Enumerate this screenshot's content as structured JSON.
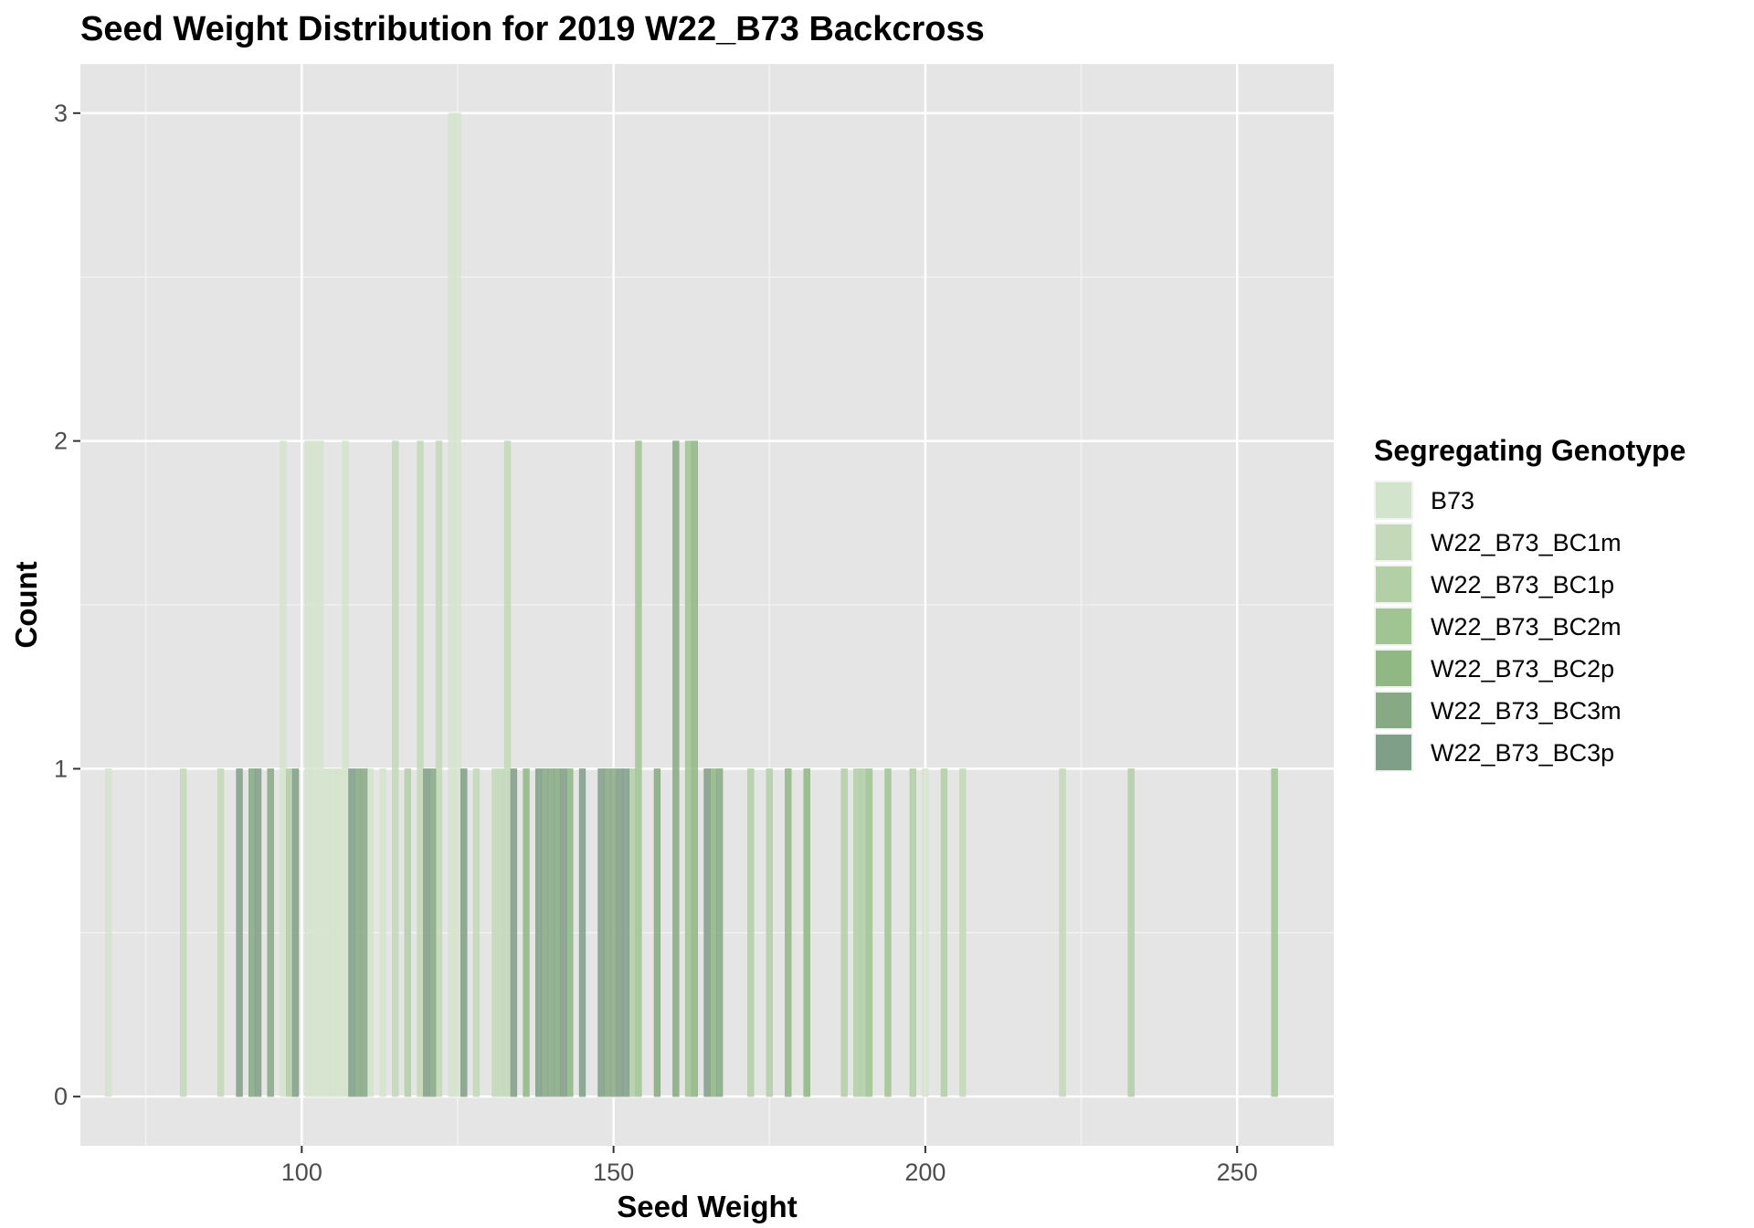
{
  "chart_data": {
    "type": "bar",
    "title": "Seed Weight Distribution for 2019 W22_B73 Backcross",
    "xlabel": "Seed Weight",
    "ylabel": "Count",
    "xlim": [
      64.5,
      265.5
    ],
    "ylim": [
      -0.15,
      3.15
    ],
    "x_ticks": [
      100,
      150,
      200,
      250
    ],
    "x_tick_labels": [
      "100",
      "150",
      "200",
      "250"
    ],
    "y_ticks": [
      0,
      1,
      2,
      3
    ],
    "y_tick_labels": [
      "0",
      "1",
      "2",
      "3"
    ],
    "grid": true,
    "legend": {
      "title": "Segregating Genotype",
      "position": "right",
      "entries": [
        {
          "label": "B73",
          "color": "#d3e4cc"
        },
        {
          "label": "W22_B73_BC1m",
          "color": "#c3d9b9"
        },
        {
          "label": "W22_B73_BC1p",
          "color": "#b2cfa6"
        },
        {
          "label": "W22_B73_BC2m",
          "color": "#a1c493"
        },
        {
          "label": "W22_B73_BC2p",
          "color": "#8fb882"
        },
        {
          "label": "W22_B73_BC3m",
          "color": "#87a984"
        },
        {
          "label": "W22_B73_BC3p",
          "color": "#809f88"
        }
      ]
    },
    "series": [
      {
        "name": "B73",
        "color": "#d3e4cc",
        "points": [
          {
            "x": 69,
            "count": 1
          },
          {
            "x": 97,
            "count": 2
          },
          {
            "x": 101,
            "count": 2
          },
          {
            "x": 102,
            "count": 2
          },
          {
            "x": 103,
            "count": 2
          },
          {
            "x": 104,
            "count": 1
          },
          {
            "x": 105,
            "count": 1
          },
          {
            "x": 106,
            "count": 1
          },
          {
            "x": 107,
            "count": 2
          },
          {
            "x": 111,
            "count": 1
          },
          {
            "x": 113,
            "count": 1
          },
          {
            "x": 124,
            "count": 3
          },
          {
            "x": 125,
            "count": 3
          },
          {
            "x": 200,
            "count": 1
          }
        ]
      },
      {
        "name": "W22_B73_BC1m",
        "color": "#c3d9b9",
        "points": [
          {
            "x": 81,
            "count": 1
          },
          {
            "x": 87,
            "count": 1
          },
          {
            "x": 115,
            "count": 2
          },
          {
            "x": 119,
            "count": 2
          },
          {
            "x": 122,
            "count": 2
          },
          {
            "x": 128,
            "count": 1
          },
          {
            "x": 131,
            "count": 1
          },
          {
            "x": 132,
            "count": 1
          },
          {
            "x": 133,
            "count": 2
          },
          {
            "x": 206,
            "count": 1
          },
          {
            "x": 222,
            "count": 1
          }
        ]
      },
      {
        "name": "W22_B73_BC1p",
        "color": "#b2cfa6",
        "points": [
          {
            "x": 98,
            "count": 1
          },
          {
            "x": 117,
            "count": 1
          },
          {
            "x": 153,
            "count": 1
          },
          {
            "x": 172,
            "count": 1
          },
          {
            "x": 175,
            "count": 1
          },
          {
            "x": 187,
            "count": 1
          },
          {
            "x": 189,
            "count": 1
          },
          {
            "x": 190,
            "count": 1
          },
          {
            "x": 198,
            "count": 1
          },
          {
            "x": 203,
            "count": 1
          },
          {
            "x": 233,
            "count": 1
          }
        ]
      },
      {
        "name": "W22_B73_BC2m",
        "color": "#a1c493",
        "points": [
          {
            "x": 154,
            "count": 2
          },
          {
            "x": 162,
            "count": 2
          },
          {
            "x": 191,
            "count": 1
          },
          {
            "x": 194,
            "count": 1
          },
          {
            "x": 256,
            "count": 1
          }
        ]
      },
      {
        "name": "W22_B73_BC2p",
        "color": "#8fb882",
        "points": [
          {
            "x": 136,
            "count": 1
          },
          {
            "x": 143,
            "count": 1
          },
          {
            "x": 163,
            "count": 2
          },
          {
            "x": 166,
            "count": 1
          },
          {
            "x": 178,
            "count": 1
          },
          {
            "x": 181,
            "count": 1
          }
        ]
      },
      {
        "name": "W22_B73_BC3m",
        "color": "#87a984",
        "points": [
          {
            "x": 92,
            "count": 1
          },
          {
            "x": 95,
            "count": 1
          },
          {
            "x": 109,
            "count": 1
          },
          {
            "x": 110,
            "count": 1
          },
          {
            "x": 121,
            "count": 1
          },
          {
            "x": 139,
            "count": 1
          },
          {
            "x": 140,
            "count": 1
          },
          {
            "x": 141,
            "count": 1
          },
          {
            "x": 149,
            "count": 1
          },
          {
            "x": 150,
            "count": 1
          },
          {
            "x": 157,
            "count": 1
          },
          {
            "x": 160,
            "count": 2
          },
          {
            "x": 167,
            "count": 1
          }
        ]
      },
      {
        "name": "W22_B73_BC3p",
        "color": "#809f88",
        "points": [
          {
            "x": 90,
            "count": 1
          },
          {
            "x": 93,
            "count": 1
          },
          {
            "x": 99,
            "count": 1
          },
          {
            "x": 108,
            "count": 1
          },
          {
            "x": 120,
            "count": 1
          },
          {
            "x": 126,
            "count": 1
          },
          {
            "x": 134,
            "count": 1
          },
          {
            "x": 138,
            "count": 1
          },
          {
            "x": 142,
            "count": 1
          },
          {
            "x": 145,
            "count": 1
          },
          {
            "x": 148,
            "count": 1
          },
          {
            "x": 151,
            "count": 1
          },
          {
            "x": 152,
            "count": 1
          },
          {
            "x": 165,
            "count": 1
          }
        ]
      }
    ]
  }
}
